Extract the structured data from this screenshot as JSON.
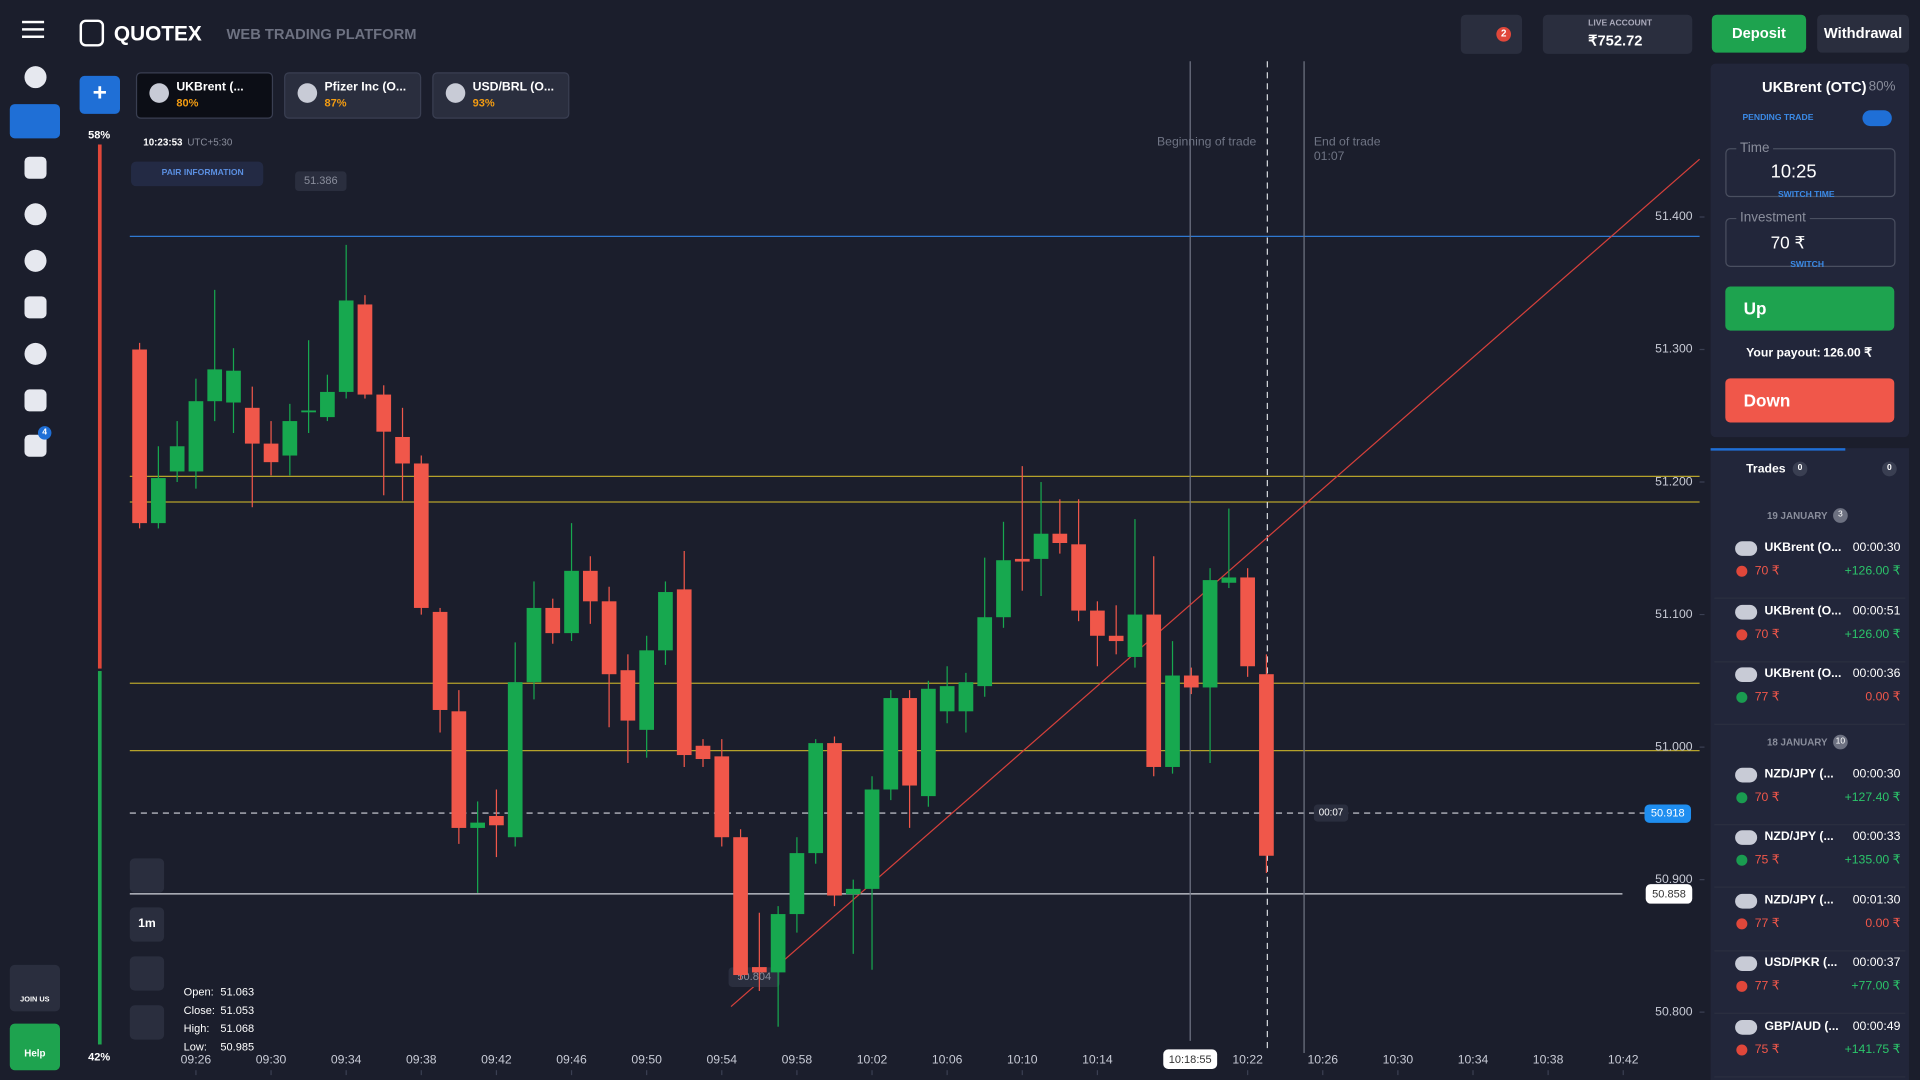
{
  "header": {
    "brand": "QUOTEX",
    "subtitle": "WEB TRADING PLATFORM",
    "notifications": "2",
    "account_label": "LIVE ACCOUNT",
    "balance": "₹752.72",
    "deposit": "Deposit",
    "withdrawal": "Withdrawal"
  },
  "sidebar": {
    "trophy_badge": "4",
    "join": "JOIN US",
    "help": "Help",
    "sentiment_up": "58%",
    "sentiment_down": "42%"
  },
  "tabs": [
    {
      "name": "UKBrent (...",
      "payout": "80%"
    },
    {
      "name": "Pfizer Inc (O...",
      "payout": "87%"
    },
    {
      "name": "USD/BRL (O...",
      "payout": "93%"
    }
  ],
  "chart_info": {
    "clock": "10:23:53",
    "timezone": "UTC+5:30",
    "pair_info": "PAIR INFORMATION",
    "max_label": "51.386",
    "min_label": "50.804",
    "beginning": "Beginning of trade",
    "end": "End of trade",
    "end_time": "01:07",
    "countdown": "00:07",
    "current_price": "50.918",
    "alert_price": "50.858",
    "hover_time": "10:18:55",
    "timeframe": "1m"
  },
  "ohlc": {
    "labels": [
      "Open:",
      "Close:",
      "High:",
      "Low:"
    ],
    "values": [
      "51.063",
      "51.053",
      "51.068",
      "50.985"
    ]
  },
  "chart_data": {
    "type": "candlestick",
    "up_color": "#17a84f",
    "down_color": "#f0574a",
    "open": [
      51.3,
      51.169,
      51.208,
      51.208,
      51.261,
      51.26,
      51.256,
      51.229,
      51.22,
      51.253,
      51.249,
      51.268,
      51.334,
      51.266,
      51.234,
      51.214,
      51.102,
      51.027,
      50.939,
      50.948,
      50.932,
      51.049,
      51.105,
      51.086,
      51.133,
      51.11,
      51.058,
      51.013,
      51.073,
      51.119,
      51.001,
      50.993,
      50.932,
      50.834,
      50.83,
      50.874,
      50.92,
      51.003,
      50.889,
      50.893,
      50.968,
      51.037,
      50.963,
      51.027,
      51.027,
      51.046,
      51.098,
      51.142,
      51.142,
      51.161,
      51.153,
      51.103,
      51.084,
      51.068,
      51.1,
      50.985,
      51.054,
      51.045,
      51.124,
      51.128,
      51.055
    ],
    "close": [
      51.169,
      51.203,
      51.227,
      51.261,
      51.285,
      51.284,
      51.229,
      51.215,
      51.246,
      51.254,
      51.268,
      51.337,
      51.266,
      51.238,
      51.214,
      51.105,
      51.028,
      50.939,
      50.943,
      50.941,
      51.049,
      51.105,
      51.086,
      51.133,
      51.11,
      51.055,
      51.02,
      51.073,
      51.117,
      50.994,
      50.991,
      50.932,
      50.828,
      50.83,
      50.874,
      50.92,
      51.003,
      50.888,
      50.893,
      50.968,
      51.037,
      50.971,
      51.044,
      51.046,
      51.049,
      51.098,
      51.141,
      51.14,
      51.161,
      51.154,
      51.103,
      51.084,
      51.08,
      51.1,
      50.985,
      51.054,
      51.045,
      51.126,
      51.128,
      51.061,
      50.918
    ],
    "high": [
      51.305,
      51.227,
      51.246,
      51.278,
      51.345,
      51.301,
      51.272,
      51.246,
      51.259,
      51.307,
      51.281,
      51.379,
      51.341,
      51.273,
      51.256,
      51.22,
      51.105,
      51.043,
      50.959,
      50.968,
      51.079,
      51.125,
      51.112,
      51.169,
      51.144,
      51.121,
      51.07,
      51.084,
      51.125,
      51.148,
      51.006,
      51.006,
      50.938,
      50.875,
      50.88,
      50.932,
      51.006,
      51.008,
      50.9,
      50.978,
      51.043,
      51.043,
      51.05,
      51.061,
      51.056,
      51.143,
      51.17,
      51.212,
      51.2,
      51.187,
      51.187,
      51.11,
      51.107,
      51.172,
      51.144,
      51.08,
      51.06,
      51.135,
      51.18,
      51.135,
      51.07
    ],
    "low": [
      51.165,
      51.165,
      51.2,
      51.195,
      51.246,
      51.237,
      51.181,
      51.205,
      51.205,
      51.237,
      51.246,
      51.263,
      51.263,
      51.19,
      51.186,
      51.1,
      51.011,
      50.927,
      50.89,
      50.917,
      50.925,
      51.036,
      51.078,
      51.08,
      51.093,
      51.015,
      50.988,
      50.992,
      51.062,
      50.985,
      50.985,
      50.925,
      50.825,
      50.816,
      50.789,
      50.86,
      50.912,
      50.88,
      50.844,
      50.832,
      50.96,
      50.939,
      50.955,
      51.018,
      51.011,
      51.038,
      51.09,
      51.118,
      51.114,
      51.146,
      51.095,
      51.061,
      51.07,
      51.06,
      50.978,
      50.98,
      51.04,
      50.988,
      51.12,
      51.053,
      50.905
    ],
    "xlim": [
      0,
      83
    ],
    "xticks": [
      {
        "value": 3,
        "label": "09:26"
      },
      {
        "value": 7,
        "label": "09:30"
      },
      {
        "value": 11,
        "label": "09:34"
      },
      {
        "value": 15,
        "label": "09:38"
      },
      {
        "value": 19,
        "label": "09:42"
      },
      {
        "value": 23,
        "label": "09:46"
      },
      {
        "value": 27,
        "label": "09:50"
      },
      {
        "value": 31,
        "label": "09:54"
      },
      {
        "value": 35,
        "label": "09:58"
      },
      {
        "value": 39,
        "label": "10:02"
      },
      {
        "value": 43,
        "label": "10:06"
      },
      {
        "value": 47,
        "label": "10:10"
      },
      {
        "value": 51,
        "label": "10:14"
      },
      {
        "value": 59,
        "label": "10:22"
      },
      {
        "value": 63,
        "label": "10:26"
      },
      {
        "value": 67,
        "label": "10:30"
      },
      {
        "value": 71,
        "label": "10:34"
      },
      {
        "value": 75,
        "label": "10:38"
      },
      {
        "value": 79,
        "label": "10:42"
      }
    ],
    "ylim": [
      50.722,
      51.524
    ],
    "yticks": [
      {
        "value": 51.4,
        "label": "51.400"
      },
      {
        "value": 51.3,
        "label": "51.300"
      },
      {
        "value": 51.2,
        "label": "51.200"
      },
      {
        "value": 51.1,
        "label": "51.100"
      },
      {
        "value": 51.0,
        "label": "51.000"
      },
      {
        "value": 50.9,
        "label": "50.900"
      },
      {
        "value": 50.8,
        "label": "50.800"
      }
    ]
  },
  "trade_panel": {
    "asset": "UKBrent (OTC)",
    "payout": "80%",
    "pending": "PENDING TRADE",
    "time_label": "Time",
    "time": "10:25",
    "switch_time": "SWITCH TIME",
    "investment_label": "Investment",
    "investment": "70 ₹",
    "switch": "SWITCH",
    "up": "Up",
    "payout_label": "Your payout:",
    "payout_value": "126.00 ₹",
    "down": "Down"
  },
  "trades": {
    "tab": "Trades",
    "open_count": "0",
    "history_count": "0",
    "groups": [
      {
        "date": "19 JANUARY",
        "count": "3",
        "items": [
          {
            "name": "UKBrent (O...",
            "duration": "00:00:30",
            "amount": "70 ₹",
            "result": "+126.00 ₹",
            "arrow_color": "#e0473a",
            "result_color": "#2bc46a"
          },
          {
            "name": "UKBrent (O...",
            "duration": "00:00:51",
            "amount": "70 ₹",
            "result": "+126.00 ₹",
            "arrow_color": "#e0473a",
            "result_color": "#2bc46a"
          },
          {
            "name": "UKBrent (O...",
            "duration": "00:00:36",
            "amount": "77 ₹",
            "result": "0.00 ₹",
            "arrow_color": "#1a9c50",
            "result_color": "#f0574a"
          }
        ]
      },
      {
        "date": "18 JANUARY",
        "count": "10",
        "items": [
          {
            "name": "NZD/JPY (...",
            "duration": "00:00:30",
            "amount": "70 ₹",
            "result": "+127.40 ₹",
            "arrow_color": "#1a9c50",
            "result_color": "#2bc46a"
          },
          {
            "name": "NZD/JPY (...",
            "duration": "00:00:33",
            "amount": "75 ₹",
            "result": "+135.00 ₹",
            "arrow_color": "#1a9c50",
            "result_color": "#2bc46a"
          },
          {
            "name": "NZD/JPY (...",
            "duration": "00:01:30",
            "amount": "77 ₹",
            "result": "0.00 ₹",
            "arrow_color": "#e0473a",
            "result_color": "#f0574a"
          },
          {
            "name": "USD/PKR (...",
            "duration": "00:00:37",
            "amount": "77 ₹",
            "result": "+77.00 ₹",
            "arrow_color": "#e0473a",
            "result_color": "#2bc46a"
          },
          {
            "name": "GBP/AUD (...",
            "duration": "00:00:49",
            "amount": "75 ₹",
            "result": "+141.75 ₹",
            "arrow_color": "#e0473a",
            "result_color": "#2bc46a"
          }
        ]
      }
    ]
  }
}
